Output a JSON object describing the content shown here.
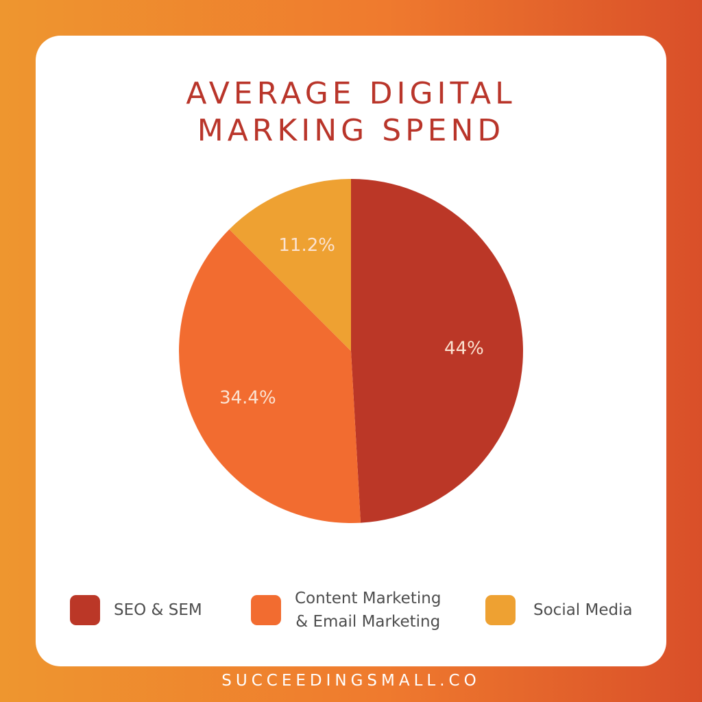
{
  "chart_data": {
    "type": "pie",
    "title": "AVERAGE DIGITAL MARKING SPEND",
    "title_lines": [
      "AVERAGE DIGITAL",
      "MARKING SPEND"
    ],
    "slices": [
      {
        "name": "SEO & SEM",
        "value": 44,
        "label": "44%",
        "color": "#bb3727"
      },
      {
        "name": "Content Marketing & Email Marketing",
        "value": 34.4,
        "label": "34.4%",
        "color": "#f26c30"
      },
      {
        "name": "Social Media",
        "value": 11.2,
        "label": "11.2%",
        "color": "#eea132"
      }
    ],
    "legend_placement": "bottom",
    "start_angle": "12 o'clock, clockwise"
  },
  "legend": {
    "seo_label": "SEO & SEM",
    "content_line1": "Content Marketing",
    "content_line2": "& Email Marketing",
    "social_label": "Social Media"
  },
  "footer": {
    "site": "SUCCEEDINGSMALL.CO"
  },
  "colors": {
    "title": "#b9352a",
    "card": "#ffffff",
    "gradient_left": "#ee962f",
    "gradient_right": "#d94f29",
    "slice_label": "#fbe3d2"
  }
}
